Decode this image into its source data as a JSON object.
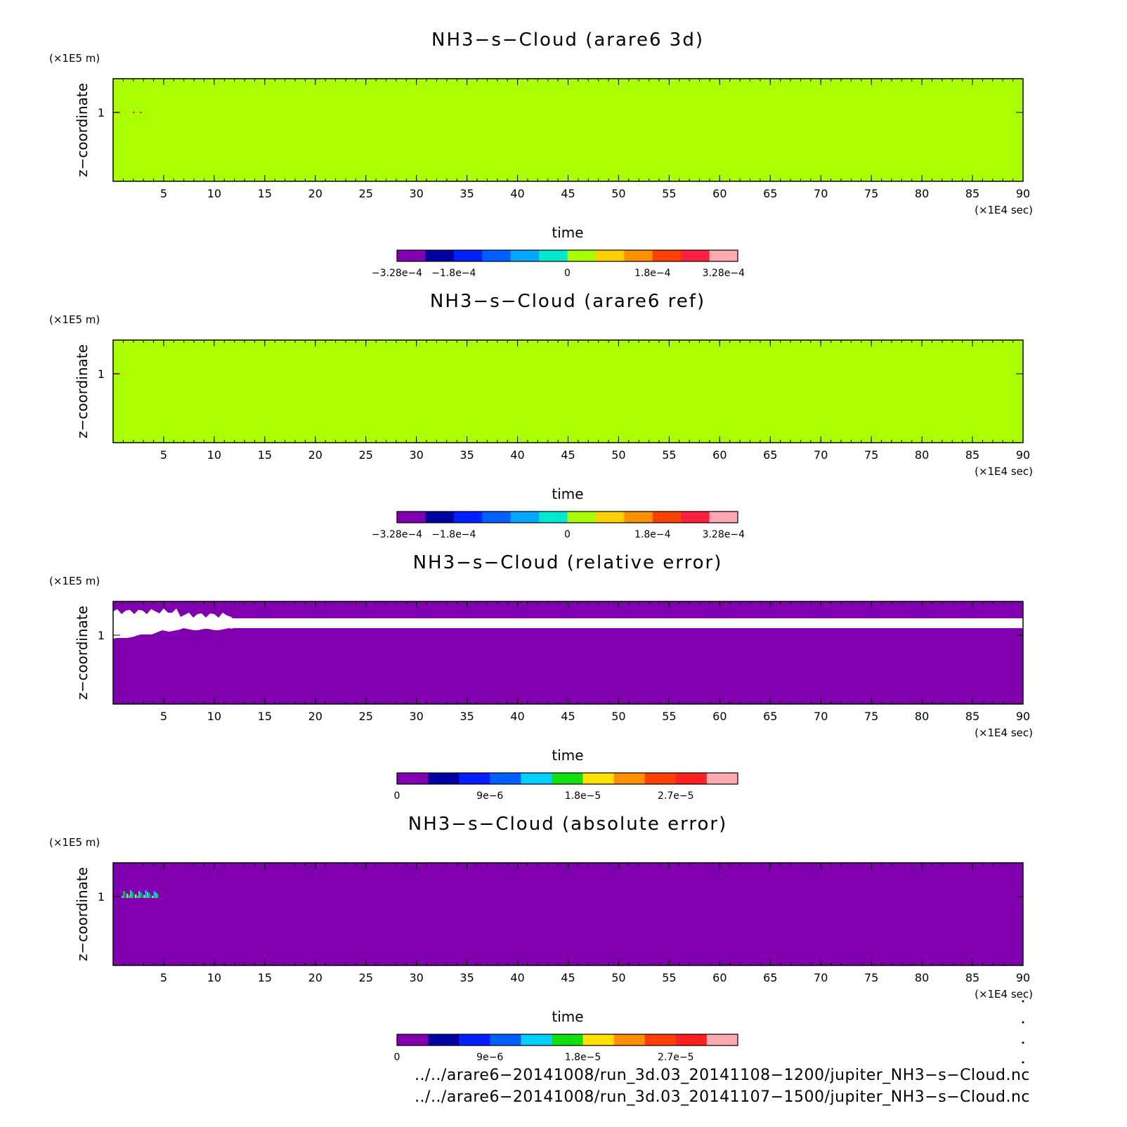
{
  "chart_data": [
    {
      "type": "heatmap",
      "title": "NH3−s−Cloud (arare6 3d)",
      "xlabel": "time",
      "ylabel": "z−coordinate",
      "x_unit": "(×1E4 sec)",
      "y_unit": "(×1E5 m)",
      "xlim": [
        0,
        90
      ],
      "x_ticks": [
        "5",
        "10",
        "15",
        "20",
        "25",
        "30",
        "35",
        "40",
        "45",
        "50",
        "55",
        "60",
        "65",
        "70",
        "75",
        "80",
        "85",
        "90"
      ],
      "y_ticks": [
        "1"
      ],
      "field": "uniform",
      "fill_color": "#aaff00",
      "colorbar": {
        "colors": [
          "#8000b0",
          "#0000a0",
          "#0020ff",
          "#0060ff",
          "#00a8ff",
          "#00e8d0",
          "#a8ff00",
          "#ffd000",
          "#ff9000",
          "#ff4000",
          "#ff2040",
          "#ffaab0"
        ],
        "labels": [
          "−3.28e−4",
          "−1.8e−4",
          "0",
          "1.8e−4",
          "3.28e−4"
        ]
      }
    },
    {
      "type": "heatmap",
      "title": "NH3−s−Cloud (arare6 ref)",
      "xlabel": "time",
      "ylabel": "z−coordinate",
      "x_unit": "(×1E4 sec)",
      "y_unit": "(×1E5 m)",
      "xlim": [
        0,
        90
      ],
      "x_ticks": [
        "5",
        "10",
        "15",
        "20",
        "25",
        "30",
        "35",
        "40",
        "45",
        "50",
        "55",
        "60",
        "65",
        "70",
        "75",
        "80",
        "85",
        "90"
      ],
      "y_ticks": [
        "1"
      ],
      "field": "uniform",
      "fill_color": "#aaff00",
      "colorbar": {
        "colors": [
          "#8000b0",
          "#0000a0",
          "#0020ff",
          "#0060ff",
          "#00a8ff",
          "#00e8d0",
          "#a8ff00",
          "#ffd000",
          "#ff9000",
          "#ff4000",
          "#ff2040",
          "#ffaab0"
        ],
        "labels": [
          "−3.28e−4",
          "−1.8e−4",
          "0",
          "1.8e−4",
          "3.28e−4"
        ]
      }
    },
    {
      "type": "heatmap",
      "title": "NH3−s−Cloud (relative error)",
      "xlabel": "time",
      "ylabel": "z−coordinate",
      "x_unit": "(×1E4 sec)",
      "y_unit": "(×1E5 m)",
      "xlim": [
        0,
        90
      ],
      "x_ticks": [
        "5",
        "10",
        "15",
        "20",
        "25",
        "30",
        "35",
        "40",
        "45",
        "50",
        "55",
        "60",
        "65",
        "70",
        "75",
        "80",
        "85",
        "90"
      ],
      "y_ticks": [
        "1"
      ],
      "field": "white_band",
      "fill_color": "#8000b0",
      "colorbar": {
        "colors": [
          "#8000b0",
          "#0000a0",
          "#0020ff",
          "#0060ff",
          "#00d0ff",
          "#10e010",
          "#ffe000",
          "#ff9000",
          "#ff4000",
          "#ff2020",
          "#ffaab0"
        ],
        "labels": [
          "0",
          "9e−6",
          "1.8e−5",
          "2.7e−5"
        ]
      }
    },
    {
      "type": "heatmap",
      "title": "NH3−s−Cloud (absolute error)",
      "xlabel": "time",
      "ylabel": "z−coordinate",
      "x_unit": "(×1E4 sec)",
      "y_unit": "(×1E5 m)",
      "xlim": [
        0,
        90
      ],
      "x_ticks": [
        "5",
        "10",
        "15",
        "20",
        "25",
        "30",
        "35",
        "40",
        "45",
        "50",
        "55",
        "60",
        "65",
        "70",
        "75",
        "80",
        "85",
        "90"
      ],
      "y_ticks": [
        "1"
      ],
      "field": "speckle",
      "fill_color": "#8000b0",
      "colorbar": {
        "colors": [
          "#8000b0",
          "#0000a0",
          "#0020ff",
          "#0060ff",
          "#00d0ff",
          "#10e010",
          "#ffe000",
          "#ff9000",
          "#ff4000",
          "#ff2020",
          "#ffaab0"
        ],
        "labels": [
          "0",
          "9e−6",
          "1.8e−5",
          "2.7e−5"
        ]
      }
    }
  ],
  "footer": {
    "line1": "../../arare6−20141008/run_3d.03_20141108−1200/jupiter_NH3−s−Cloud.nc",
    "line2": "../../arare6−20141008/run_3d.03_20141107−1500/jupiter_NH3−s−Cloud.nc"
  }
}
